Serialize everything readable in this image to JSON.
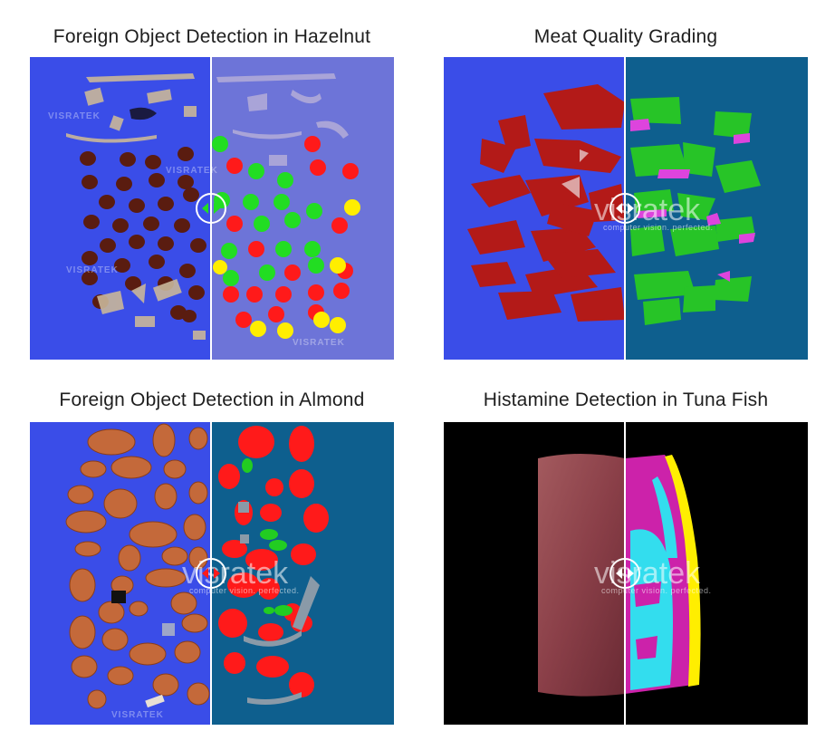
{
  "cards": [
    {
      "title": "Foreign Object Detection in Hazelnut",
      "watermark": "VISRATEK"
    },
    {
      "title": "Meat Quality Grading",
      "watermark": "visratek",
      "tagline": "computer vision. perfected."
    },
    {
      "title": "Foreign Object Detection in Almond",
      "watermark": "visratek",
      "tagline": "computer vision. perfected.",
      "watermark_small": "VISRATEK"
    },
    {
      "title": "Histamine Detection in Tuna Fish",
      "watermark": "visratek",
      "tagline": "computer vision. perfected."
    }
  ],
  "colors": {
    "blue_bg": "#3a4de8",
    "lavender_bg": "#6d74d8",
    "teal_bg": "#0e5f8e",
    "black_bg": "#000000",
    "good": "#22dd22",
    "bad": "#ff1a1a",
    "foreign": "#ffee00",
    "fat": "#dd44dd",
    "histamine": "#33ddee"
  }
}
